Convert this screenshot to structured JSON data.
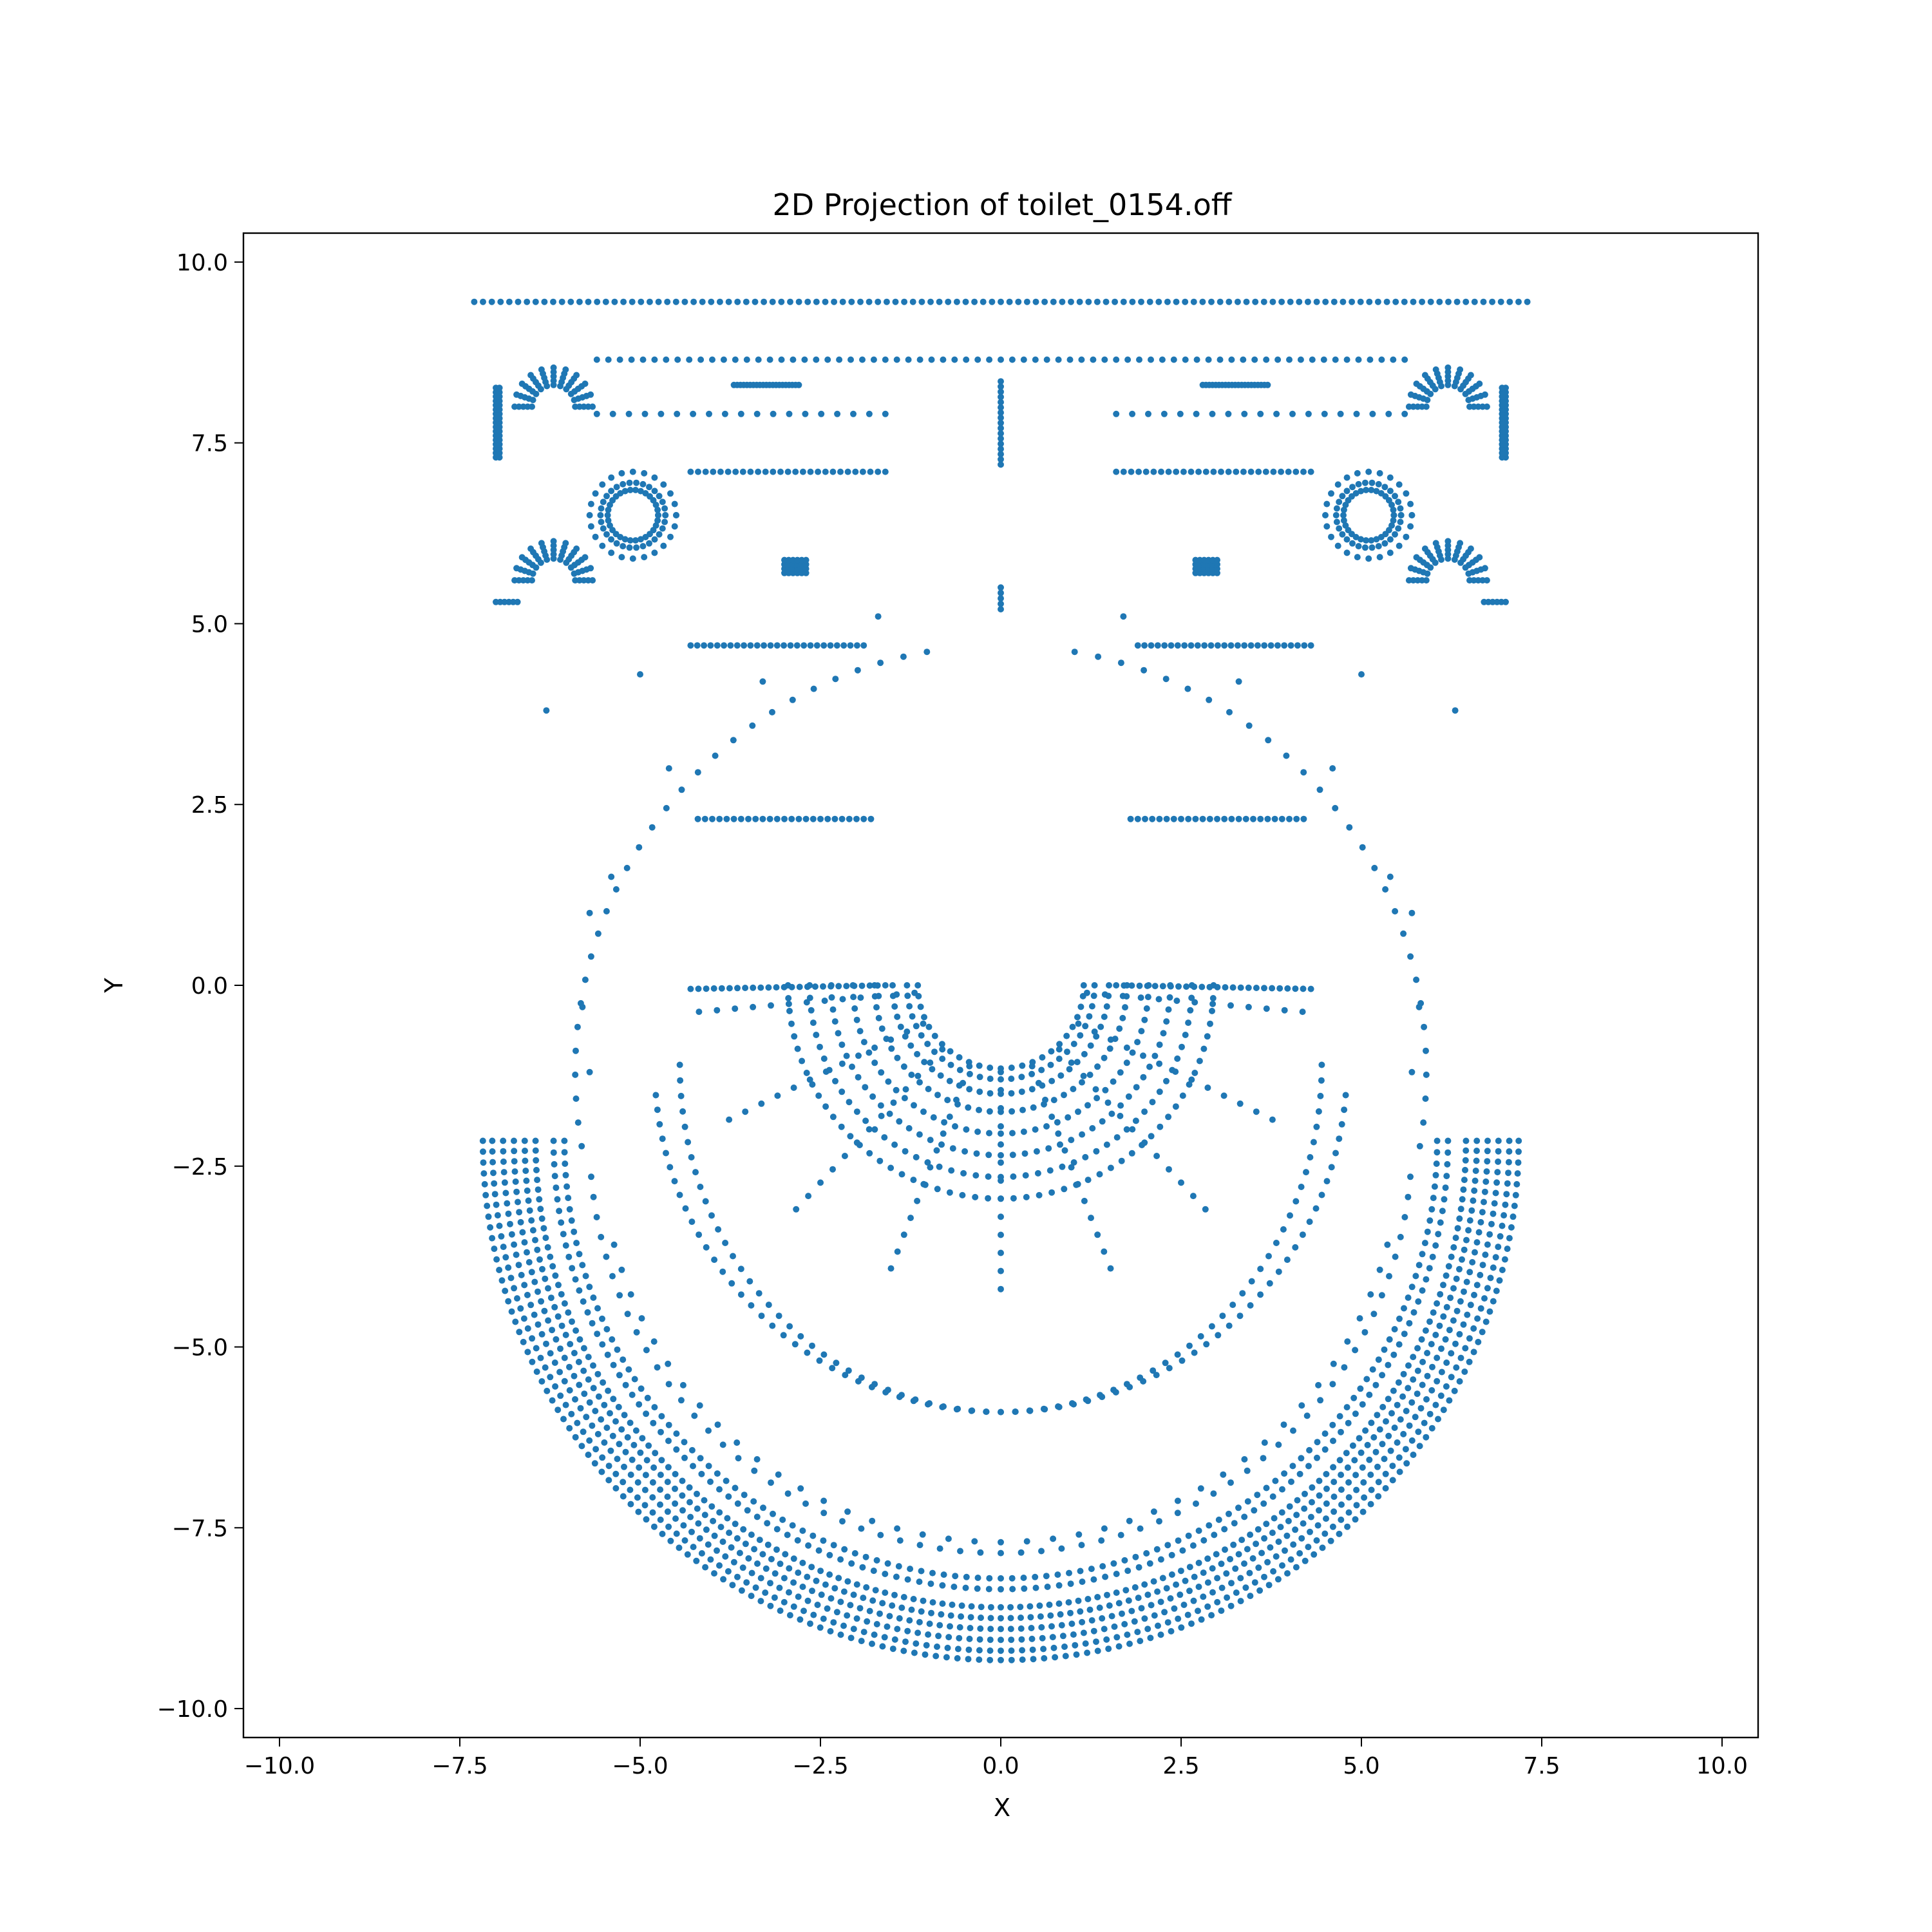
{
  "chart_data": {
    "type": "scatter",
    "title": "2D Projection of toilet_0154.off",
    "xlabel": "X",
    "ylabel": "Y",
    "xlim": [
      -10.5,
      10.5
    ],
    "ylim": [
      -10.4,
      10.4
    ],
    "xticks": [
      -10.0,
      -7.5,
      -5.0,
      -2.5,
      0.0,
      2.5,
      5.0,
      7.5,
      10.0
    ],
    "yticks": [
      -10.0,
      -7.5,
      -5.0,
      -2.5,
      0.0,
      2.5,
      5.0,
      7.5,
      10.0
    ],
    "xtick_labels": [
      "−10.0",
      "−7.5",
      "−5.0",
      "−2.5",
      "0.0",
      "2.5",
      "5.0",
      "7.5",
      "10.0"
    ],
    "ytick_labels": [
      "−10.0",
      "−7.5",
      "−5.0",
      "−2.5",
      "0.0",
      "2.5",
      "5.0",
      "7.5",
      "10.0"
    ],
    "grid": false,
    "marker_color": "#1f77b4",
    "series": [
      {
        "points_approx": "dense bowl outline: concentric semicircular arcs centered near (0, -2.2) with radii ~6.4 to 7.2 spanning x -7.2..7.2; inner bowl arcs; seat arcs centered at (0,0) radii 1.2..4.2; tank rectangle top near y=9.4; bolt rings at (-5.1, 6.5) and (5.1, 6.5)"
      }
    ]
  }
}
